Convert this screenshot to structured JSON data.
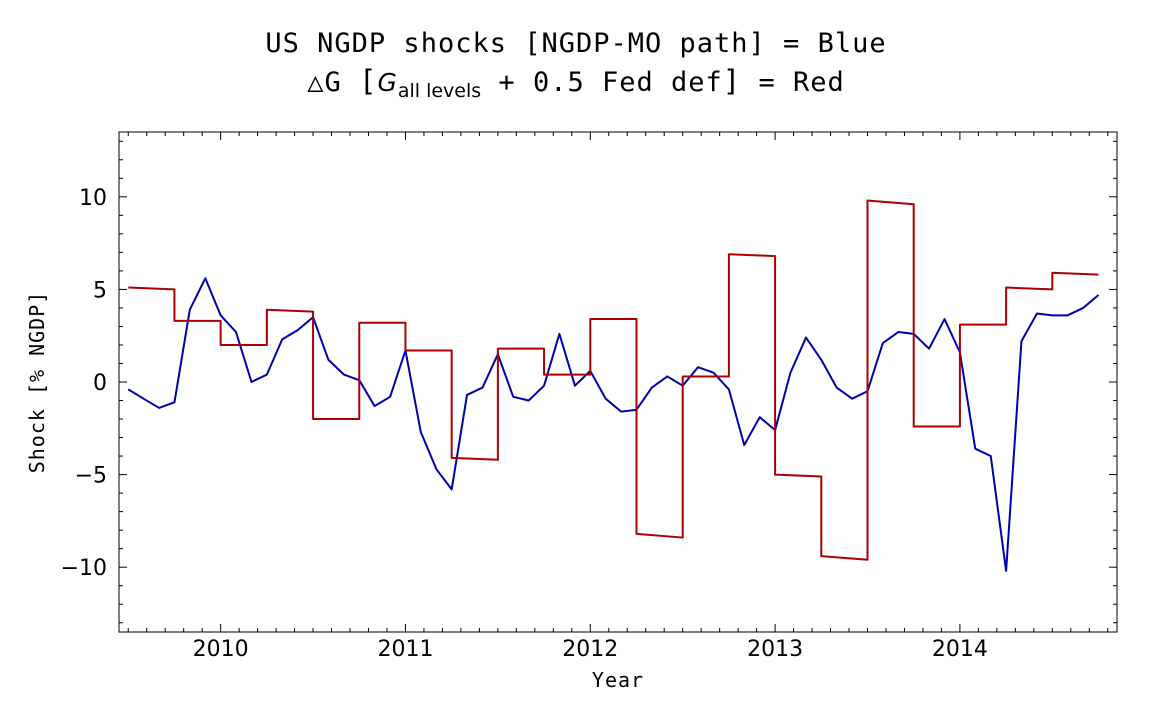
{
  "chart_data": {
    "type": "line",
    "title_line1": "US NGDP shocks [NGDP-MO path] = Blue",
    "title_line2": {
      "prefix": "△G ",
      "open_bracket": "[",
      "g_symbol": "G",
      "g_subscript": "all levels",
      "rest": " + 0.5 Fed def",
      "close_bracket": "]",
      "suffix": " = Red"
    },
    "xlabel": "Year",
    "ylabel": "Shock [% NGDP]",
    "xlim": [
      2009.45,
      2014.85
    ],
    "ylim": [
      -13.5,
      13.5
    ],
    "x_ticks": [
      2010,
      2011,
      2012,
      2013,
      2014
    ],
    "x_tick_labels": [
      "2010",
      "2011",
      "2012",
      "2013",
      "2014"
    ],
    "y_ticks": [
      -10,
      -5,
      0,
      5,
      10
    ],
    "y_tick_labels": [
      "−10",
      "−5",
      "0",
      "5",
      "10"
    ],
    "grid": false,
    "series": [
      {
        "color": "#0000aa",
        "style": "line",
        "x": [
          2009.5,
          2009.583,
          2009.667,
          2009.75,
          2009.833,
          2009.917,
          2010.0,
          2010.083,
          2010.167,
          2010.25,
          2010.333,
          2010.417,
          2010.5,
          2010.583,
          2010.667,
          2010.75,
          2010.833,
          2010.917,
          2011.0,
          2011.083,
          2011.167,
          2011.25,
          2011.333,
          2011.417,
          2011.5,
          2011.583,
          2011.667,
          2011.75,
          2011.833,
          2011.917,
          2012.0,
          2012.083,
          2012.167,
          2012.25,
          2012.333,
          2012.417,
          2012.5,
          2012.583,
          2012.667,
          2012.75,
          2012.833,
          2012.917,
          2013.0,
          2013.083,
          2013.167,
          2013.25,
          2013.333,
          2013.417,
          2013.5,
          2013.583,
          2013.667,
          2013.75,
          2013.833,
          2013.917,
          2014.0,
          2014.083,
          2014.167,
          2014.25,
          2014.333,
          2014.417,
          2014.5,
          2014.583,
          2014.667,
          2014.75
        ],
        "y": [
          -0.4,
          -0.9,
          -1.4,
          -1.1,
          3.9,
          5.6,
          3.6,
          2.7,
          0.0,
          0.4,
          2.3,
          2.8,
          3.5,
          1.2,
          0.4,
          0.1,
          -1.3,
          -0.8,
          1.7,
          -2.7,
          -4.7,
          -5.8,
          -0.7,
          -0.3,
          1.5,
          -0.8,
          -1.0,
          -0.2,
          2.6,
          -0.2,
          0.6,
          -0.9,
          -1.6,
          -1.5,
          -0.3,
          0.3,
          -0.2,
          0.8,
          0.5,
          -0.4,
          -3.4,
          -1.9,
          -2.6,
          0.5,
          2.4,
          1.2,
          -0.3,
          -0.9,
          -0.5,
          2.1,
          2.7,
          2.6,
          1.8,
          3.4,
          1.6,
          -3.6,
          -4.0,
          -10.2,
          2.2,
          3.7,
          3.6,
          3.6,
          4.0,
          4.7
        ]
      },
      {
        "color": "#aa0000",
        "style": "step",
        "segments": [
          {
            "x0": 2009.5,
            "x1": 2009.75,
            "y0": 5.1,
            "y1": 5.0
          },
          {
            "x0": 2009.75,
            "x1": 2010.0,
            "y0": 3.3,
            "y1": 3.3
          },
          {
            "x0": 2010.0,
            "x1": 2010.25,
            "y0": 2.0,
            "y1": 2.0
          },
          {
            "x0": 2010.25,
            "x1": 2010.5,
            "y0": 3.9,
            "y1": 3.8
          },
          {
            "x0": 2010.5,
            "x1": 2010.75,
            "y0": -2.0,
            "y1": -2.0
          },
          {
            "x0": 2010.75,
            "x1": 2011.0,
            "y0": 3.2,
            "y1": 3.2
          },
          {
            "x0": 2011.0,
            "x1": 2011.25,
            "y0": 1.7,
            "y1": 1.7
          },
          {
            "x0": 2011.25,
            "x1": 2011.5,
            "y0": -4.1,
            "y1": -4.2
          },
          {
            "x0": 2011.5,
            "x1": 2011.75,
            "y0": 1.8,
            "y1": 1.8
          },
          {
            "x0": 2011.75,
            "x1": 2012.0,
            "y0": 0.4,
            "y1": 0.4
          },
          {
            "x0": 2012.0,
            "x1": 2012.25,
            "y0": 3.4,
            "y1": 3.4
          },
          {
            "x0": 2012.25,
            "x1": 2012.5,
            "y0": -8.2,
            "y1": -8.4
          },
          {
            "x0": 2012.5,
            "x1": 2012.75,
            "y0": 0.3,
            "y1": 0.3
          },
          {
            "x0": 2012.75,
            "x1": 2013.0,
            "y0": 6.9,
            "y1": 6.8
          },
          {
            "x0": 2013.0,
            "x1": 2013.25,
            "y0": -5.0,
            "y1": -5.1
          },
          {
            "x0": 2013.25,
            "x1": 2013.5,
            "y0": -9.4,
            "y1": -9.6
          },
          {
            "x0": 2013.5,
            "x1": 2013.75,
            "y0": 9.8,
            "y1": 9.6
          },
          {
            "x0": 2013.75,
            "x1": 2014.0,
            "y0": -2.4,
            "y1": -2.4
          },
          {
            "x0": 2014.0,
            "x1": 2014.25,
            "y0": 3.1,
            "y1": 3.1
          },
          {
            "x0": 2014.25,
            "x1": 2014.5,
            "y0": 5.1,
            "y1": 5.0
          },
          {
            "x0": 2014.5,
            "x1": 2014.75,
            "y0": 5.9,
            "y1": 5.8
          }
        ]
      }
    ]
  }
}
